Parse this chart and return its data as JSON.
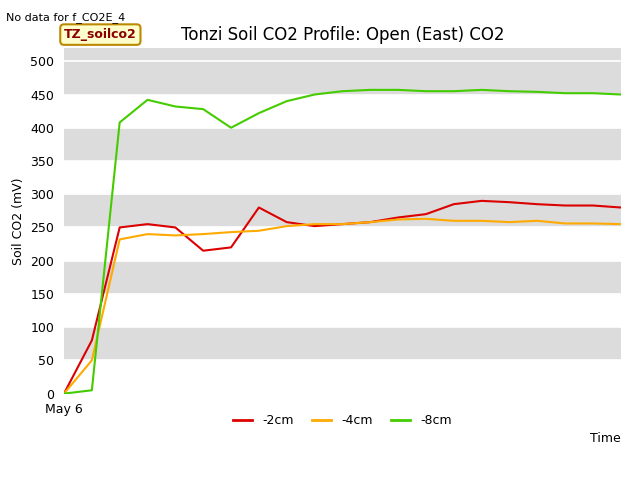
{
  "title": "Tonzi Soil CO2 Profile: Open (East) CO2",
  "top_left_text": "No data for f_CO2E_4",
  "ylabel": "Soil CO2 (mV)",
  "xlabel": "Time",
  "annotation_label": "TZ_soilco2",
  "ylim": [
    0,
    520
  ],
  "yticks": [
    0,
    50,
    100,
    150,
    200,
    250,
    300,
    350,
    400,
    450,
    500
  ],
  "plot_bg_color": "#dcdcdc",
  "stripe_color": "#c8c8c8",
  "x_start_label": "May 6",
  "series": [
    {
      "label": "-2cm",
      "color": "#dd0000",
      "x": [
        0,
        1,
        2,
        3,
        4,
        5,
        6,
        7,
        8,
        9,
        10,
        11,
        12,
        13,
        14,
        15,
        16,
        17,
        18,
        19,
        20
      ],
      "y": [
        0,
        80,
        250,
        255,
        250,
        215,
        220,
        280,
        258,
        252,
        255,
        258,
        265,
        270,
        285,
        290,
        288,
        285,
        283,
        283,
        280
      ]
    },
    {
      "label": "-4cm",
      "color": "#ffaa00",
      "x": [
        0,
        1,
        2,
        3,
        4,
        5,
        6,
        7,
        8,
        9,
        10,
        11,
        12,
        13,
        14,
        15,
        16,
        17,
        18,
        19,
        20
      ],
      "y": [
        0,
        50,
        232,
        240,
        238,
        240,
        243,
        245,
        252,
        255,
        255,
        258,
        262,
        263,
        260,
        260,
        258,
        260,
        256,
        256,
        255
      ]
    },
    {
      "label": "-8cm",
      "color": "#44cc00",
      "x": [
        0,
        1,
        2,
        3,
        4,
        5,
        6,
        7,
        8,
        9,
        10,
        11,
        12,
        13,
        14,
        15,
        16,
        17,
        18,
        19,
        20
      ],
      "y": [
        0,
        5,
        408,
        442,
        432,
        428,
        400,
        422,
        440,
        450,
        455,
        457,
        457,
        455,
        455,
        457,
        455,
        454,
        452,
        452,
        450
      ]
    }
  ],
  "legend_ncol": 3,
  "title_fontsize": 12,
  "axis_label_fontsize": 9,
  "tick_fontsize": 9,
  "annotation_fontsize": 9,
  "line_width": 1.5
}
